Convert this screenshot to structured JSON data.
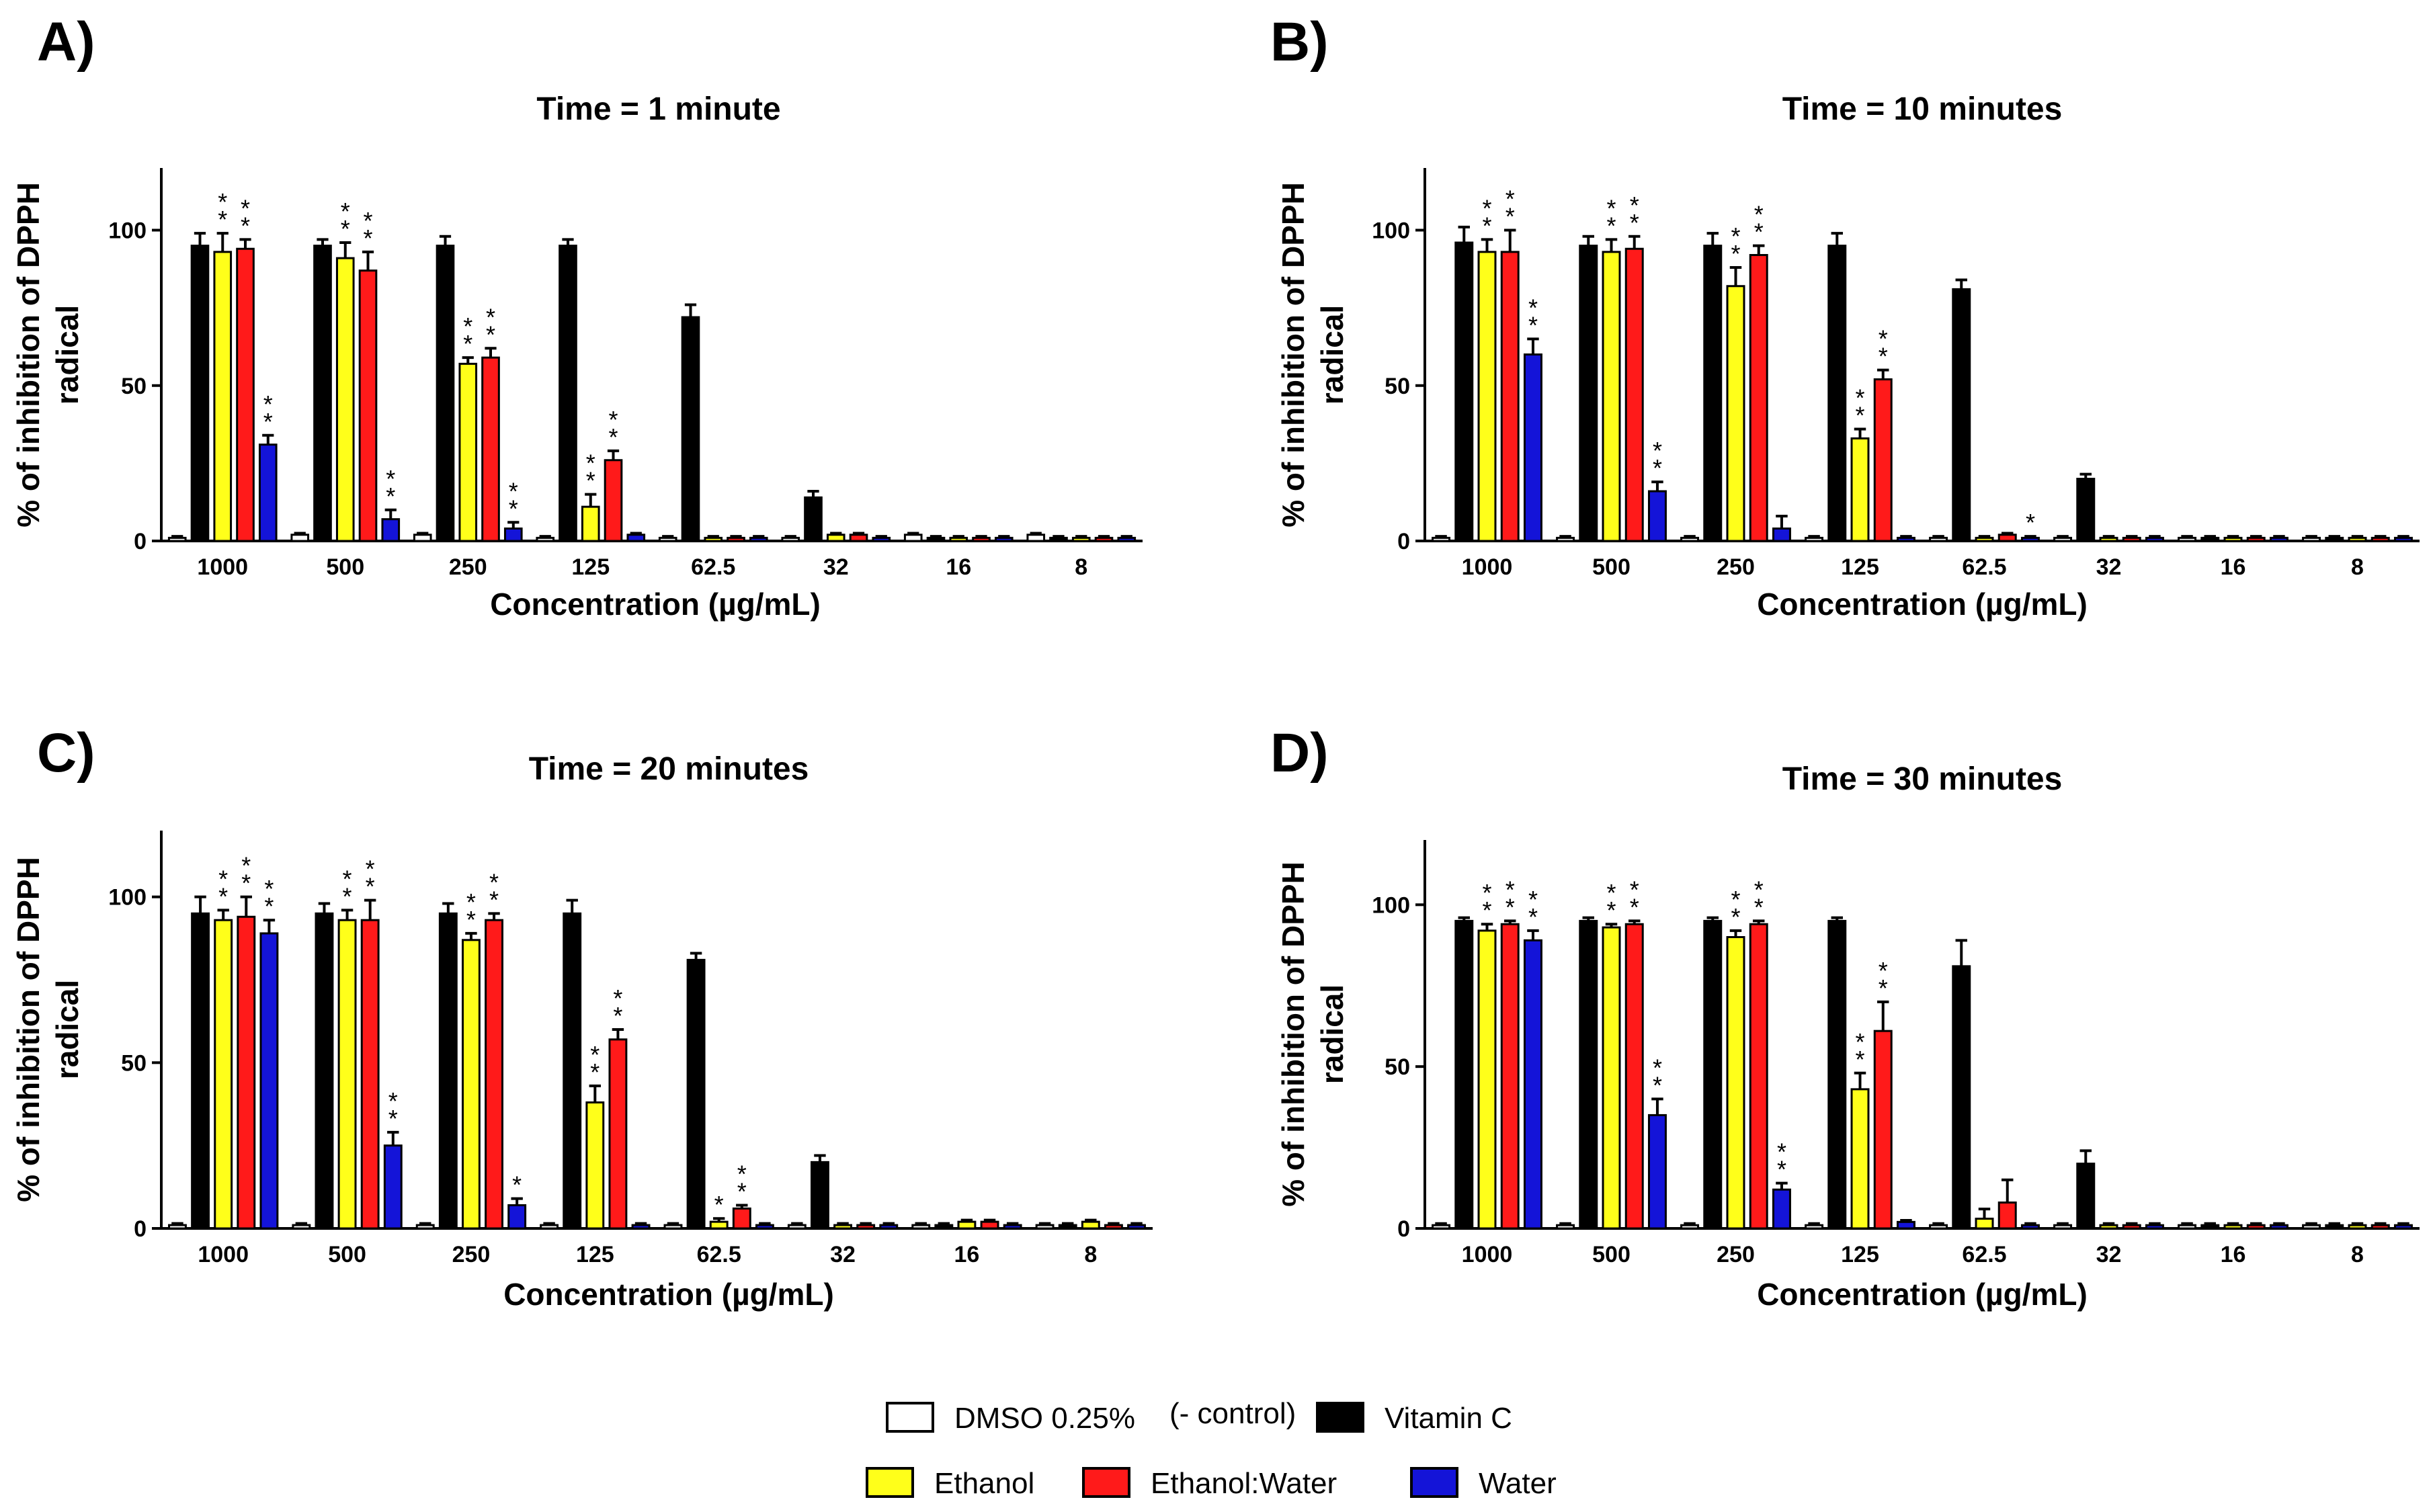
{
  "figure": {
    "legend": [
      {
        "key": "dmso",
        "label": "DMSO 0.25%",
        "color": "#ffffff"
      },
      {
        "key": "control_note",
        "label": "(- control)"
      },
      {
        "key": "vitc",
        "label": "Vitamin C",
        "color": "#000000"
      },
      {
        "key": "ethanol",
        "label": "Ethanol",
        "color": "#ffff1a"
      },
      {
        "key": "ethwater",
        "label": "Ethanol:Water",
        "color": "#ff1a1a"
      },
      {
        "key": "water",
        "label": "Water",
        "color": "#1414d8"
      }
    ]
  },
  "chart_data": [
    {
      "panel": "A)",
      "type": "bar",
      "title": "Time = 1 minute",
      "xlabel": "Concentration (µg/mL)",
      "ylabel": "% of inhibition of DPPH radical",
      "ylim": [
        0,
        120
      ],
      "yticks": [
        0,
        50,
        100
      ],
      "categories": [
        "1000",
        "500",
        "250",
        "125",
        "62.5",
        "32",
        "16",
        "8"
      ],
      "series": [
        {
          "name": "DMSO 0.25%",
          "color": "#ffffff",
          "values": [
            1,
            2,
            2,
            1,
            1,
            1,
            2,
            2
          ],
          "errors": [
            0.5,
            0.5,
            0.5,
            0.5,
            0.5,
            0.5,
            0.5,
            0.5
          ],
          "sig": [
            "",
            "",
            "",
            "",
            "",
            "",
            "",
            ""
          ]
        },
        {
          "name": "Vitamin C",
          "color": "#000000",
          "values": [
            95,
            95,
            95,
            95,
            72,
            14,
            1,
            1
          ],
          "errors": [
            4,
            2,
            3,
            2,
            4,
            2,
            0.5,
            0.5
          ],
          "sig": [
            "",
            "",
            "",
            "",
            "",
            "",
            "",
            ""
          ]
        },
        {
          "name": "Ethanol",
          "color": "#ffff1a",
          "values": [
            93,
            91,
            57,
            11,
            1,
            2,
            1,
            1
          ],
          "errors": [
            6,
            5,
            2,
            4,
            0.5,
            0.5,
            0.5,
            0.5
          ],
          "sig": [
            "**",
            "**",
            "**",
            "**",
            "",
            "",
            "",
            ""
          ]
        },
        {
          "name": "Ethanol:Water",
          "color": "#ff1a1a",
          "values": [
            94,
            87,
            59,
            26,
            1,
            2,
            1,
            1
          ],
          "errors": [
            3,
            6,
            3,
            3,
            0.5,
            0.5,
            0.5,
            0.5
          ],
          "sig": [
            "**",
            "**",
            "**",
            "**",
            "",
            "",
            "",
            ""
          ]
        },
        {
          "name": "Water",
          "color": "#1414d8",
          "values": [
            31,
            7,
            4,
            2,
            1,
            1,
            1,
            1
          ],
          "errors": [
            3,
            3,
            2,
            0.5,
            0.5,
            0.5,
            0.5,
            0.5
          ],
          "sig": [
            "**",
            "**",
            "**",
            "",
            "",
            "",
            "",
            ""
          ]
        }
      ]
    },
    {
      "panel": "B)",
      "type": "bar",
      "title": "Time = 10 minutes",
      "xlabel": "Concentration (µg/mL)",
      "ylabel": "% of inhibition of DPPH radical",
      "ylim": [
        0,
        120
      ],
      "yticks": [
        0,
        50,
        100
      ],
      "categories": [
        "1000",
        "500",
        "250",
        "125",
        "62.5",
        "32",
        "16",
        "8"
      ],
      "series": [
        {
          "name": "DMSO 0.25%",
          "color": "#ffffff",
          "values": [
            1,
            1,
            1,
            1,
            1,
            1,
            1,
            1
          ],
          "errors": [
            0.5,
            0.5,
            0.5,
            0.5,
            0.5,
            0.5,
            0.5,
            0.5
          ],
          "sig": [
            "",
            "",
            "",
            "",
            "",
            "",
            "",
            ""
          ]
        },
        {
          "name": "Vitamin C",
          "color": "#000000",
          "values": [
            96,
            95,
            95,
            95,
            81,
            20,
            1,
            1
          ],
          "errors": [
            5,
            3,
            4,
            4,
            3,
            1.5,
            0.5,
            0.5
          ],
          "sig": [
            "",
            "",
            "",
            "",
            "",
            "",
            "",
            ""
          ]
        },
        {
          "name": "Ethanol",
          "color": "#ffff1a",
          "values": [
            93,
            93,
            82,
            33,
            1,
            1,
            1,
            1
          ],
          "errors": [
            4,
            4,
            6,
            3,
            0.5,
            0.5,
            0.5,
            0.5
          ],
          "sig": [
            "**",
            "**",
            "**",
            "**",
            "",
            "",
            "",
            ""
          ]
        },
        {
          "name": "Ethanol:Water",
          "color": "#ff1a1a",
          "values": [
            93,
            94,
            92,
            52,
            2,
            1,
            1,
            1
          ],
          "errors": [
            7,
            4,
            3,
            3,
            0.5,
            0.5,
            0.5,
            0.5
          ],
          "sig": [
            "**",
            "**",
            "**",
            "**",
            "",
            "",
            "",
            ""
          ]
        },
        {
          "name": "Water",
          "color": "#1414d8",
          "values": [
            60,
            16,
            4,
            1,
            1,
            1,
            1,
            1
          ],
          "errors": [
            5,
            3,
            4,
            0.5,
            0.5,
            0.5,
            0.5,
            0.5
          ],
          "sig": [
            "**",
            "**",
            "",
            "",
            "*",
            "",
            "",
            ""
          ]
        }
      ]
    },
    {
      "panel": "C)",
      "type": "bar",
      "title": "Time = 20 minutes",
      "xlabel": "Concentration (µg/mL)",
      "ylabel": "% of inhibition of DPPH radical",
      "ylim": [
        0,
        120
      ],
      "yticks": [
        0,
        50,
        100
      ],
      "categories": [
        "1000",
        "500",
        "250",
        "125",
        "62.5",
        "32",
        "16",
        "8"
      ],
      "series": [
        {
          "name": "DMSO 0.25%",
          "color": "#ffffff",
          "values": [
            1,
            1,
            1,
            1,
            1,
            1,
            1,
            1
          ],
          "errors": [
            0.5,
            0.5,
            0.5,
            0.5,
            0.5,
            0.5,
            0.5,
            0.5
          ],
          "sig": [
            "",
            "",
            "",
            "",
            "",
            "",
            "",
            ""
          ]
        },
        {
          "name": "Vitamin C",
          "color": "#000000",
          "values": [
            95,
            95,
            95,
            95,
            81,
            20,
            1,
            1
          ],
          "errors": [
            5,
            3,
            3,
            4,
            2,
            2,
            0.5,
            0.5
          ],
          "sig": [
            "",
            "",
            "",
            "",
            "",
            "",
            "",
            ""
          ]
        },
        {
          "name": "Ethanol",
          "color": "#ffff1a",
          "values": [
            93,
            93,
            87,
            38,
            2,
            1,
            2,
            2
          ],
          "errors": [
            3,
            3,
            2,
            5,
            1,
            0.5,
            0.5,
            0.5
          ],
          "sig": [
            "**",
            "**",
            "**",
            "**",
            "*",
            "",
            "",
            ""
          ]
        },
        {
          "name": "Ethanol:Water",
          "color": "#ff1a1a",
          "values": [
            94,
            93,
            93,
            57,
            6,
            1,
            2,
            1
          ],
          "errors": [
            6,
            6,
            2,
            3,
            1,
            0.5,
            0.5,
            0.5
          ],
          "sig": [
            "**",
            "**",
            "**",
            "**",
            "**",
            "",
            "",
            ""
          ]
        },
        {
          "name": "Water",
          "color": "#1414d8",
          "values": [
            89,
            25,
            7,
            1,
            1,
            1,
            1,
            1
          ],
          "errors": [
            4,
            4,
            2,
            0.5,
            0.5,
            0.5,
            0.5,
            0.5
          ],
          "sig": [
            "**",
            "**",
            "*",
            "",
            "",
            "",
            "",
            ""
          ]
        }
      ]
    },
    {
      "panel": "D)",
      "type": "bar",
      "title": "Time = 30 minutes",
      "xlabel": "Concentration (µg/mL)",
      "ylabel": "% of inhibition of DPPH radical",
      "ylim": [
        0,
        120
      ],
      "yticks": [
        0,
        50,
        100
      ],
      "categories": [
        "1000",
        "500",
        "250",
        "125",
        "62.5",
        "32",
        "16",
        "8"
      ],
      "series": [
        {
          "name": "DMSO 0.25%",
          "color": "#ffffff",
          "values": [
            1,
            1,
            1,
            1,
            1,
            1,
            1,
            1
          ],
          "errors": [
            0.5,
            0.5,
            0.5,
            0.5,
            0.5,
            0.5,
            0.5,
            0.5
          ],
          "sig": [
            "",
            "",
            "",
            "",
            "",
            "",
            "",
            ""
          ]
        },
        {
          "name": "Vitamin C",
          "color": "#000000",
          "values": [
            95,
            95,
            95,
            95,
            81,
            20,
            1,
            1
          ],
          "errors": [
            1,
            1,
            1,
            1,
            8,
            4,
            0.5,
            0.5
          ],
          "sig": [
            "",
            "",
            "",
            "",
            "",
            "",
            "",
            ""
          ]
        },
        {
          "name": "Ethanol",
          "color": "#ffff1a",
          "values": [
            92,
            93,
            90,
            43,
            3,
            1,
            1,
            1
          ],
          "errors": [
            2,
            1,
            2,
            5,
            3,
            0.5,
            0.5,
            0.5
          ],
          "sig": [
            "**",
            "**",
            "**",
            "**",
            "",
            "",
            "",
            ""
          ]
        },
        {
          "name": "Ethanol:Water",
          "color": "#ff1a1a",
          "values": [
            94,
            94,
            94,
            61,
            8,
            1,
            1,
            1
          ],
          "errors": [
            1,
            1,
            1,
            9,
            7,
            0.5,
            0.5,
            0.5
          ],
          "sig": [
            "**",
            "**",
            "**",
            "**",
            "",
            "",
            "",
            ""
          ]
        },
        {
          "name": "Water",
          "color": "#1414d8",
          "values": [
            89,
            35,
            12,
            2,
            1,
            1,
            1,
            1
          ],
          "errors": [
            3,
            5,
            2,
            0.5,
            0.5,
            0.5,
            0.5,
            0.5
          ],
          "sig": [
            "**",
            "**",
            "**",
            "",
            "",
            "",
            "",
            ""
          ]
        }
      ]
    }
  ]
}
